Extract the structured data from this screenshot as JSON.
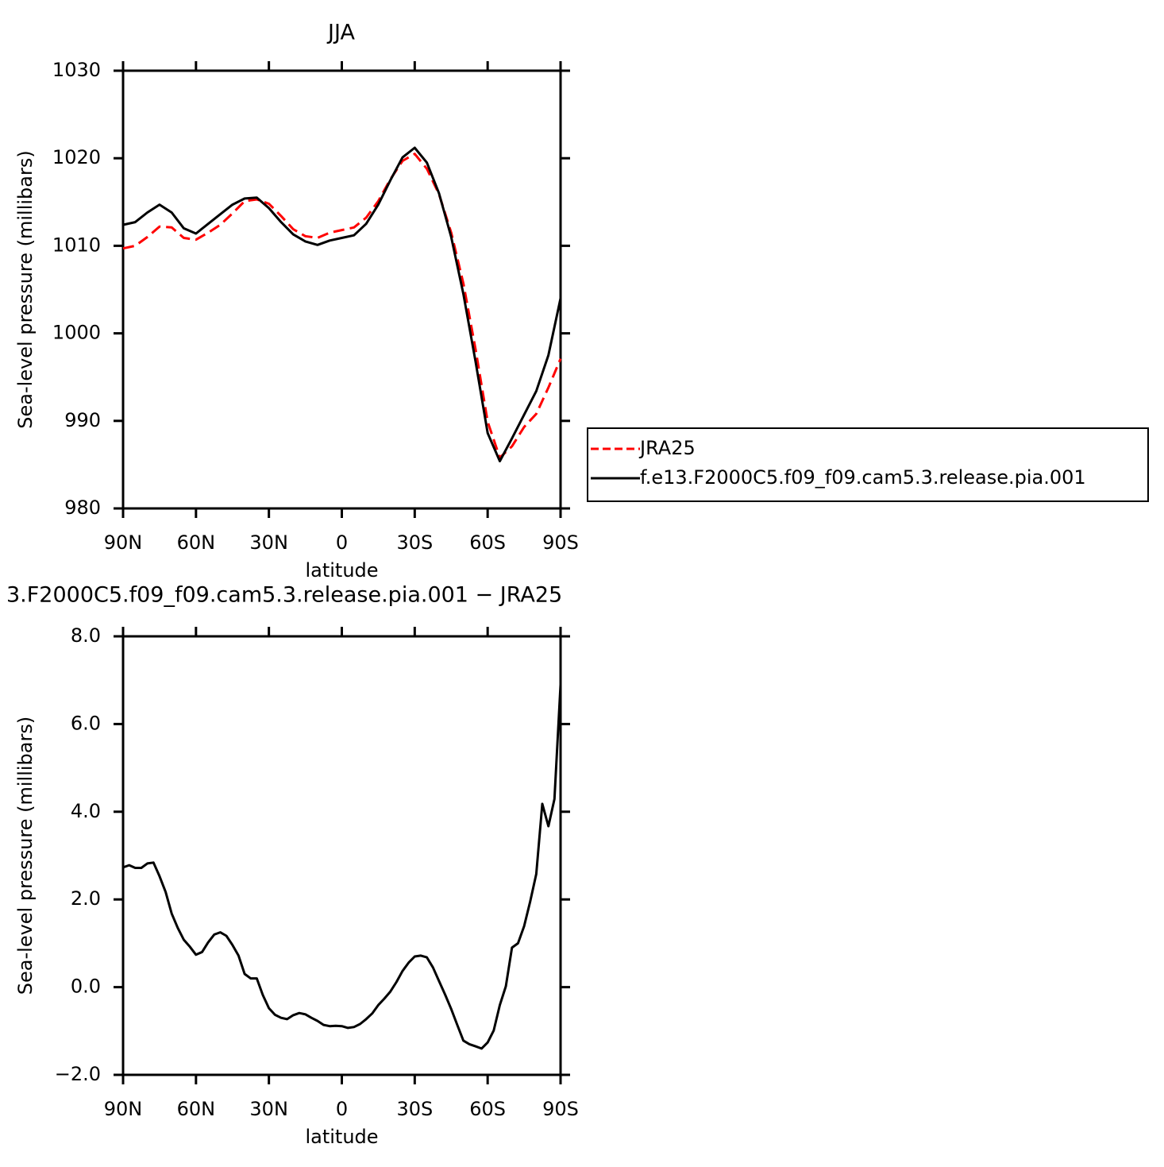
{
  "chart_data": [
    {
      "type": "line",
      "title": "JJA",
      "xlabel": "latitude",
      "ylabel": "Sea-level pressure (millibars)",
      "x": [
        90,
        85,
        80,
        75,
        70,
        65,
        60,
        55,
        50,
        45,
        40,
        35,
        30,
        25,
        20,
        15,
        10,
        5,
        0,
        -5,
        -10,
        -15,
        -20,
        -25,
        -30,
        -35,
        -40,
        -45,
        -50,
        -55,
        -60,
        -65,
        -70,
        -75,
        -80,
        -85,
        -90
      ],
      "series": [
        {
          "name": "JRA25",
          "color": "#ff0000",
          "style": "dashed",
          "values": [
            1009.7,
            1010.0,
            1011.0,
            1012.2,
            1012.1,
            1010.9,
            1010.7,
            1011.5,
            1012.4,
            1013.7,
            1015.1,
            1015.3,
            1014.8,
            1013.4,
            1011.9,
            1011.1,
            1010.9,
            1011.5,
            1011.8,
            1012.1,
            1013.2,
            1015.1,
            1017.6,
            1019.7,
            1020.5,
            1018.8,
            1015.9,
            1011.5,
            1005.7,
            998.2,
            989.9,
            985.8,
            987.1,
            989.3,
            990.8,
            993.8,
            997.1
          ]
        },
        {
          "name": "f.e13.F2000C5.f09_f09.cam5.3.release.pia.001",
          "color": "#000000",
          "style": "solid",
          "values": [
            1012.4,
            1012.7,
            1013.8,
            1014.7,
            1013.8,
            1012.0,
            1011.4,
            1012.5,
            1013.6,
            1014.7,
            1015.4,
            1015.5,
            1014.3,
            1012.7,
            1011.3,
            1010.5,
            1010.1,
            1010.6,
            1010.9,
            1011.2,
            1012.5,
            1014.7,
            1017.5,
            1020.1,
            1021.2,
            1019.5,
            1016.0,
            1011.0,
            1004.5,
            996.8,
            988.6,
            985.4,
            988.0,
            990.7,
            993.4,
            997.5,
            1004.0
          ]
        }
      ],
      "xlim": [
        90,
        -90
      ],
      "xticks": [
        {
          "value": 90,
          "label": "90N"
        },
        {
          "value": 60,
          "label": "60N"
        },
        {
          "value": 30,
          "label": "30N"
        },
        0,
        {
          "value": -30,
          "label": "30S"
        },
        {
          "value": -60,
          "label": "60S"
        },
        {
          "value": -90,
          "label": "90S"
        }
      ],
      "ylim": [
        980,
        1030
      ],
      "yticks": [
        980,
        990,
        1000,
        1010,
        1020,
        1030
      ],
      "grid": false,
      "legend": "right"
    },
    {
      "type": "line",
      "title": "3.F2000C5.f09_f09.cam5.3.release.pia.001 − JRA25",
      "xlabel": "latitude",
      "ylabel": "Sea-level pressure (millibars)",
      "x": [
        90,
        87.5,
        85,
        82.5,
        80,
        77.5,
        75,
        72.5,
        70,
        67.5,
        65,
        62.5,
        60,
        57.5,
        55,
        52.5,
        50,
        47.5,
        45,
        42.5,
        40,
        37.5,
        35,
        32.5,
        30,
        27.5,
        25,
        22.5,
        20,
        17.5,
        15,
        12.5,
        10,
        7.5,
        5,
        2.5,
        0,
        -2.5,
        -5,
        -7.5,
        -10,
        -12.5,
        -15,
        -17.5,
        -20,
        -22.5,
        -25,
        -27.5,
        -30,
        -32.5,
        -35,
        -37.5,
        -40,
        -42.5,
        -45,
        -47.5,
        -50,
        -52.5,
        -55,
        -57.5,
        -60,
        -62.5,
        -65,
        -67.5,
        -70,
        -72.5,
        -75,
        -77.5,
        -80,
        -82.5,
        -85,
        -87.5,
        -90
      ],
      "color": "#000000",
      "values": [
        2.73,
        2.78,
        2.72,
        2.72,
        2.82,
        2.84,
        2.53,
        2.17,
        1.68,
        1.35,
        1.08,
        0.92,
        0.74,
        0.8,
        1.02,
        1.2,
        1.25,
        1.17,
        0.96,
        0.72,
        0.3,
        0.2,
        0.2,
        -0.18,
        -0.48,
        -0.63,
        -0.7,
        -0.73,
        -0.64,
        -0.59,
        -0.62,
        -0.7,
        -0.77,
        -0.86,
        -0.89,
        -0.88,
        -0.89,
        -0.93,
        -0.91,
        -0.84,
        -0.73,
        -0.6,
        -0.41,
        -0.26,
        -0.1,
        0.12,
        0.37,
        0.56,
        0.7,
        0.72,
        0.68,
        0.45,
        0.14,
        -0.17,
        -0.5,
        -0.86,
        -1.22,
        -1.3,
        -1.35,
        -1.4,
        -1.26,
        -0.99,
        -0.41,
        0.02,
        0.9,
        1.0,
        1.39,
        1.95,
        2.58,
        4.18,
        3.67,
        4.29,
        6.9
      ],
      "xlim": [
        90,
        -90
      ],
      "xticks": [
        {
          "value": 90,
          "label": "90N"
        },
        {
          "value": 60,
          "label": "60N"
        },
        {
          "value": 30,
          "label": "30N"
        },
        0,
        {
          "value": -30,
          "label": "30S"
        },
        {
          "value": -60,
          "label": "60S"
        },
        {
          "value": -90,
          "label": "90S"
        }
      ],
      "ylim": [
        -2,
        8
      ],
      "yticks": [
        {
          "value": -2,
          "label": "−2.0"
        },
        {
          "value": 0,
          "label": "0.0"
        },
        {
          "value": 2,
          "label": "2.0"
        },
        {
          "value": 4,
          "label": "4.0"
        },
        {
          "value": 6,
          "label": "6.0"
        },
        {
          "value": 8,
          "label": "8.0"
        }
      ],
      "grid": false
    }
  ]
}
